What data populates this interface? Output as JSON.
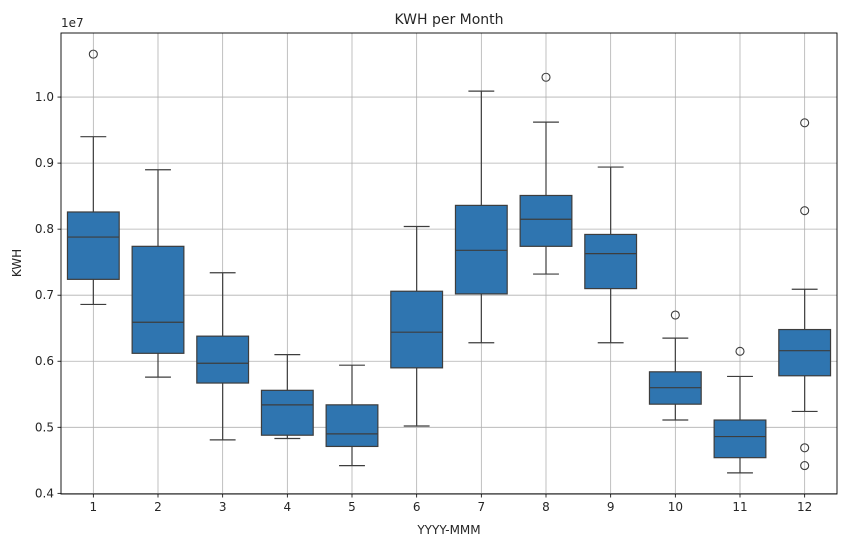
{
  "chart_data": {
    "type": "box",
    "title": "KWH per Month",
    "xlabel": "YYYY-MMM",
    "ylabel": "KWH",
    "y_offset_label": "1e7",
    "y_scale": 10000000,
    "categories": [
      "1",
      "2",
      "3",
      "4",
      "5",
      "6",
      "7",
      "8",
      "9",
      "10",
      "11",
      "12"
    ],
    "y_ticks": [
      0.4,
      0.5,
      0.6,
      0.7,
      0.8,
      0.9,
      1.0
    ],
    "y_tick_labels": [
      "0.4",
      "0.5",
      "0.6",
      "0.7",
      "0.8",
      "0.9",
      "1.0"
    ],
    "ylim": [
      0.399,
      1.097
    ],
    "grid": true,
    "box_color": "#2f75b0",
    "line_color": "#3d3d3d",
    "boxes": [
      {
        "min": 0.686,
        "q1": 0.724,
        "median": 0.788,
        "q3": 0.826,
        "max": 0.94,
        "outliers": [
          1.065
        ]
      },
      {
        "min": 0.576,
        "q1": 0.612,
        "median": 0.659,
        "q3": 0.774,
        "max": 0.89,
        "outliers": []
      },
      {
        "min": 0.481,
        "q1": 0.567,
        "median": 0.597,
        "q3": 0.638,
        "max": 0.734,
        "outliers": []
      },
      {
        "min": 0.483,
        "q1": 0.488,
        "median": 0.534,
        "q3": 0.556,
        "max": 0.61,
        "outliers": []
      },
      {
        "min": 0.442,
        "q1": 0.471,
        "median": 0.49,
        "q3": 0.534,
        "max": 0.594,
        "outliers": []
      },
      {
        "min": 0.502,
        "q1": 0.59,
        "median": 0.644,
        "q3": 0.706,
        "max": 0.804,
        "outliers": []
      },
      {
        "min": 0.628,
        "q1": 0.702,
        "median": 0.768,
        "q3": 0.836,
        "max": 1.009,
        "outliers": []
      },
      {
        "min": 0.732,
        "q1": 0.774,
        "median": 0.815,
        "q3": 0.851,
        "max": 0.962,
        "outliers": [
          1.03
        ]
      },
      {
        "min": 0.628,
        "q1": 0.71,
        "median": 0.763,
        "q3": 0.792,
        "max": 0.894,
        "outliers": []
      },
      {
        "min": 0.511,
        "q1": 0.535,
        "median": 0.56,
        "q3": 0.584,
        "max": 0.635,
        "outliers": [
          0.67
        ]
      },
      {
        "min": 0.431,
        "q1": 0.454,
        "median": 0.486,
        "q3": 0.511,
        "max": 0.577,
        "outliers": [
          0.615
        ]
      },
      {
        "min": 0.524,
        "q1": 0.578,
        "median": 0.616,
        "q3": 0.648,
        "max": 0.709,
        "outliers": [
          0.961,
          0.828,
          0.469,
          0.442
        ]
      }
    ]
  }
}
